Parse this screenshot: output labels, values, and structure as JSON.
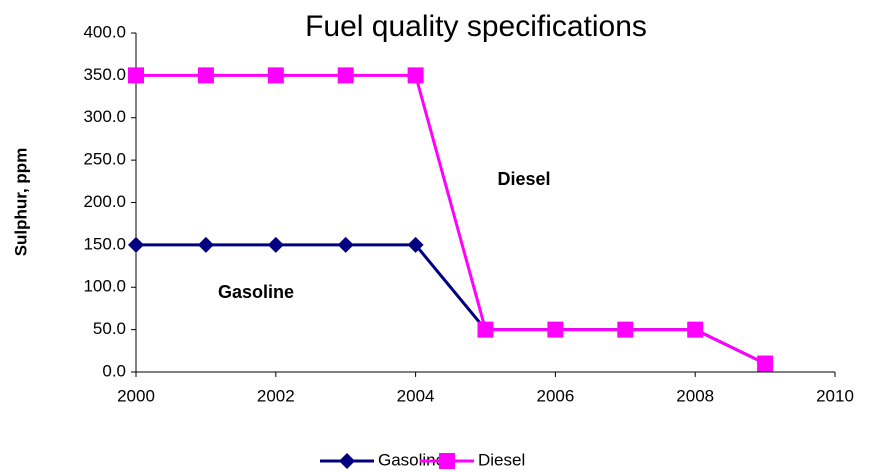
{
  "chart_data": {
    "type": "line",
    "title": "Fuel quality specifications",
    "y_label": "Sulphur, ppm",
    "x": [
      2000,
      2001,
      2002,
      2003,
      2004,
      2005,
      2006,
      2007,
      2008,
      2009
    ],
    "series": [
      {
        "name": "Gasoline",
        "color": "#000080",
        "marker": "diamond",
        "values": [
          150,
          150,
          150,
          150,
          150,
          50,
          50,
          50,
          50,
          10
        ]
      },
      {
        "name": "Diesel",
        "color": "#ff00ff",
        "marker": "square",
        "values": [
          350,
          350,
          350,
          350,
          350,
          50,
          50,
          50,
          50,
          10
        ]
      }
    ],
    "xlim": [
      2000,
      2010
    ],
    "xticks": [
      2000,
      2002,
      2004,
      2006,
      2008,
      2010
    ],
    "ylim": [
      0,
      400
    ],
    "yticks": [
      {
        "value": 0,
        "label": "0.0"
      },
      {
        "value": 50,
        "label": "50.0"
      },
      {
        "value": 100,
        "label": "100.0"
      },
      {
        "value": 150,
        "label": "150.0"
      },
      {
        "value": 200,
        "label": "200.0"
      },
      {
        "value": 250,
        "label": "250.0"
      },
      {
        "value": 300,
        "label": "300.0"
      },
      {
        "value": 350,
        "label": "350.0"
      },
      {
        "value": 400,
        "label": "400.0"
      }
    ],
    "annotations": [
      "Diesel",
      "Gasoline"
    ],
    "grid": false,
    "legend": "bottom"
  }
}
